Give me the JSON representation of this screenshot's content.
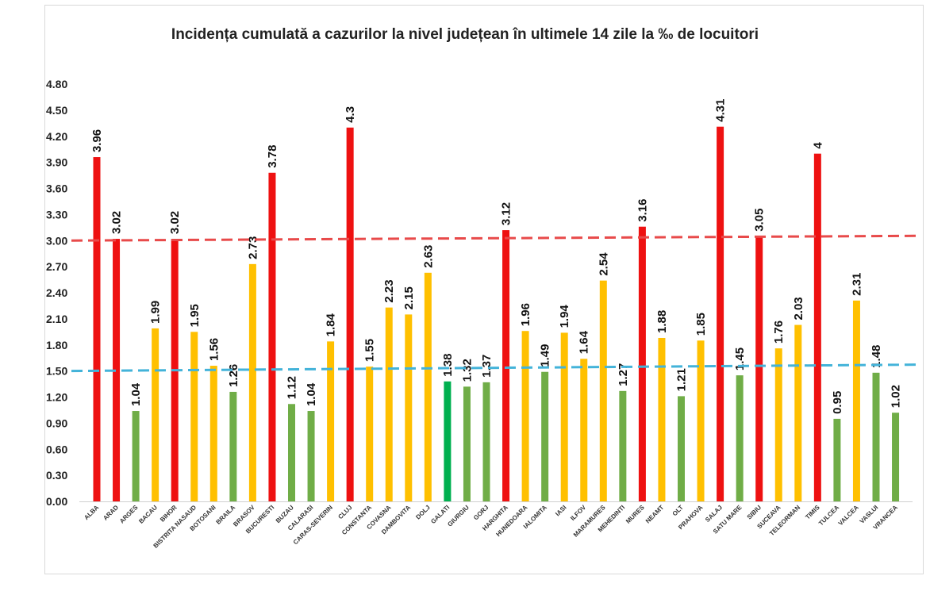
{
  "chart_data": {
    "type": "bar",
    "title": "Incidența cumulată a cazurilor la nivel județean în ultimele 14 zile la ‰ de locuitori",
    "xlabel": "",
    "ylabel": "",
    "ylim": [
      0,
      4.8
    ],
    "yticks": [
      "0.00",
      "0.30",
      "0.60",
      "0.90",
      "1.20",
      "1.50",
      "1.80",
      "2.10",
      "2.40",
      "2.70",
      "3.00",
      "3.30",
      "3.60",
      "3.90",
      "4.20",
      "4.50",
      "4.80"
    ],
    "grid": false,
    "categories": [
      "ALBA",
      "ARAD",
      "ARGES",
      "BACAU",
      "BIHOR",
      "BISTRITA NASAUD",
      "BOTOSANI",
      "BRAILA",
      "BRASOV",
      "BUCURESTI",
      "BUZAU",
      "CALARASI",
      "CARAS-SEVERIN",
      "CLUJ",
      "CONSTANTA",
      "COVASNA",
      "DAMBOVITA",
      "DOLJ",
      "GALATI",
      "GIURGIU",
      "GORJ",
      "HARGHITA",
      "HUNEDOARA",
      "IALOMITA",
      "IASI",
      "ILFOV",
      "MARAMURES",
      "MEHEDINTI",
      "MURES",
      "NEAMT",
      "OLT",
      "PRAHOVA",
      "SALAJ",
      "SATU MARE",
      "SIBIU",
      "SUCEAVA",
      "TELEORMAN",
      "TIMIS",
      "TULCEA",
      "VALCEA",
      "VASLUI",
      "VRANCEA"
    ],
    "values": [
      3.96,
      3.02,
      1.04,
      1.99,
      3.02,
      1.95,
      1.56,
      1.26,
      2.73,
      3.78,
      1.12,
      1.04,
      1.84,
      4.3,
      1.55,
      2.23,
      2.15,
      2.63,
      1.38,
      1.32,
      1.37,
      3.12,
      1.96,
      1.49,
      1.94,
      1.64,
      2.54,
      1.27,
      3.16,
      1.88,
      1.21,
      1.85,
      4.31,
      1.45,
      3.05,
      1.76,
      2.03,
      4,
      0.95,
      2.31,
      1.48,
      1.02
    ],
    "value_labels": [
      "3.96",
      "3.02",
      "1.04",
      "1.99",
      "3.02",
      "1.95",
      "1.56",
      "1.26",
      "2.73",
      "3.78",
      "1.12",
      "1.04",
      "1.84",
      "4.3",
      "1.55",
      "2.23",
      "2.15",
      "2.63",
      "1.38",
      "1.32",
      "1.37",
      "3.12",
      "1.96",
      "1.49",
      "1.94",
      "1.64",
      "2.54",
      "1.27",
      "3.16",
      "1.88",
      "1.21",
      "1.85",
      "4.31",
      "1.45",
      "3.05",
      "1.76",
      "2.03",
      "4",
      "0.95",
      "2.31",
      "1.48",
      "1.02"
    ],
    "colors": {
      "red": "#ee1111",
      "yellow": "#ffc000",
      "green": "#70ad47",
      "dark_green": "#00b050",
      "threshold_red": "#e84a4a",
      "threshold_blue": "#43b3d9"
    },
    "bar_colors": [
      "red",
      "red",
      "green",
      "yellow",
      "red",
      "yellow",
      "yellow",
      "green",
      "yellow",
      "red",
      "green",
      "green",
      "yellow",
      "red",
      "yellow",
      "yellow",
      "yellow",
      "yellow",
      "dark_green",
      "green",
      "green",
      "red",
      "yellow",
      "green",
      "yellow",
      "yellow",
      "yellow",
      "green",
      "red",
      "yellow",
      "green",
      "yellow",
      "red",
      "green",
      "red",
      "yellow",
      "yellow",
      "red",
      "green",
      "yellow",
      "green",
      "green"
    ],
    "thresholds": [
      {
        "value": 3.0,
        "color": "threshold_red",
        "style": "dashed"
      },
      {
        "value": 1.5,
        "color": "threshold_blue",
        "style": "dashed"
      }
    ]
  }
}
